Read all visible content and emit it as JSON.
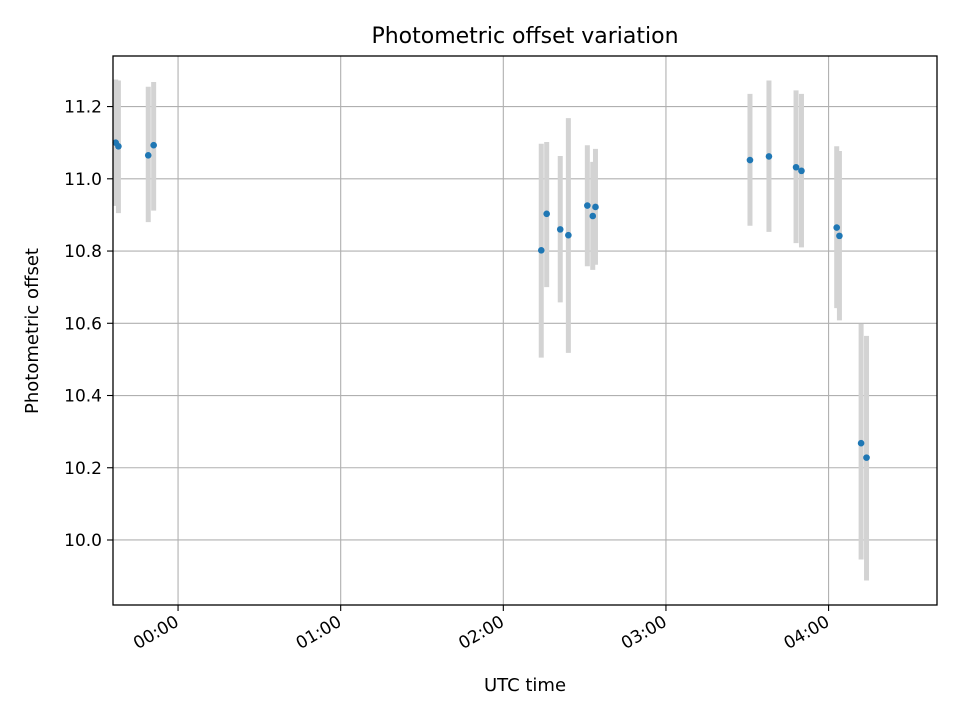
{
  "chart_data": {
    "type": "scatter",
    "title": "Photometric offset variation",
    "xlabel": "UTC time",
    "ylabel": "Photometric offset",
    "grid": true,
    "x_ticks": [
      "00:00",
      "01:00",
      "02:00",
      "03:00",
      "04:00"
    ],
    "y_ticks": [
      "10.0",
      "10.2",
      "10.4",
      "10.6",
      "10.8",
      "11.0",
      "11.2"
    ],
    "xlim": [
      "23:36",
      "04:40"
    ],
    "ylim": [
      9.82,
      11.34
    ],
    "marker_color": "#1f77b4",
    "errorbar_color": "#d3d3d3",
    "series": [
      {
        "points": [
          {
            "time": "23:37",
            "y": 11.1,
            "err_low": 10.925,
            "err_high": 11.275
          },
          {
            "time": "23:38",
            "y": 11.09,
            "err_low": 10.905,
            "err_high": 11.272
          },
          {
            "time": "23:49",
            "y": 11.065,
            "err_low": 10.88,
            "err_high": 11.255
          },
          {
            "time": "23:51",
            "y": 11.093,
            "err_low": 10.912,
            "err_high": 11.268
          },
          {
            "time": "02:14",
            "y": 10.802,
            "err_low": 10.505,
            "err_high": 11.097
          },
          {
            "time": "02:16",
            "y": 10.903,
            "err_low": 10.7,
            "err_high": 11.102
          },
          {
            "time": "02:21",
            "y": 10.86,
            "err_low": 10.658,
            "err_high": 11.063
          },
          {
            "time": "02:24",
            "y": 10.844,
            "err_low": 10.518,
            "err_high": 11.168
          },
          {
            "time": "02:31",
            "y": 10.926,
            "err_low": 10.758,
            "err_high": 11.093
          },
          {
            "time": "02:33",
            "y": 10.897,
            "err_low": 10.748,
            "err_high": 11.047
          },
          {
            "time": "02:34",
            "y": 10.922,
            "err_low": 10.762,
            "err_high": 11.083
          },
          {
            "time": "03:31",
            "y": 11.052,
            "err_low": 10.87,
            "err_high": 11.235
          },
          {
            "time": "03:38",
            "y": 11.062,
            "err_low": 10.853,
            "err_high": 11.272
          },
          {
            "time": "03:48",
            "y": 11.032,
            "err_low": 10.822,
            "err_high": 11.245
          },
          {
            "time": "03:50",
            "y": 11.022,
            "err_low": 10.81,
            "err_high": 11.235
          },
          {
            "time": "04:03",
            "y": 10.865,
            "err_low": 10.642,
            "err_high": 11.09
          },
          {
            "time": "04:04",
            "y": 10.842,
            "err_low": 10.608,
            "err_high": 11.077
          },
          {
            "time": "04:12",
            "y": 10.268,
            "err_low": 9.946,
            "err_high": 10.598
          },
          {
            "time": "04:14",
            "y": 10.228,
            "err_low": 9.888,
            "err_high": 10.565
          }
        ]
      }
    ]
  }
}
